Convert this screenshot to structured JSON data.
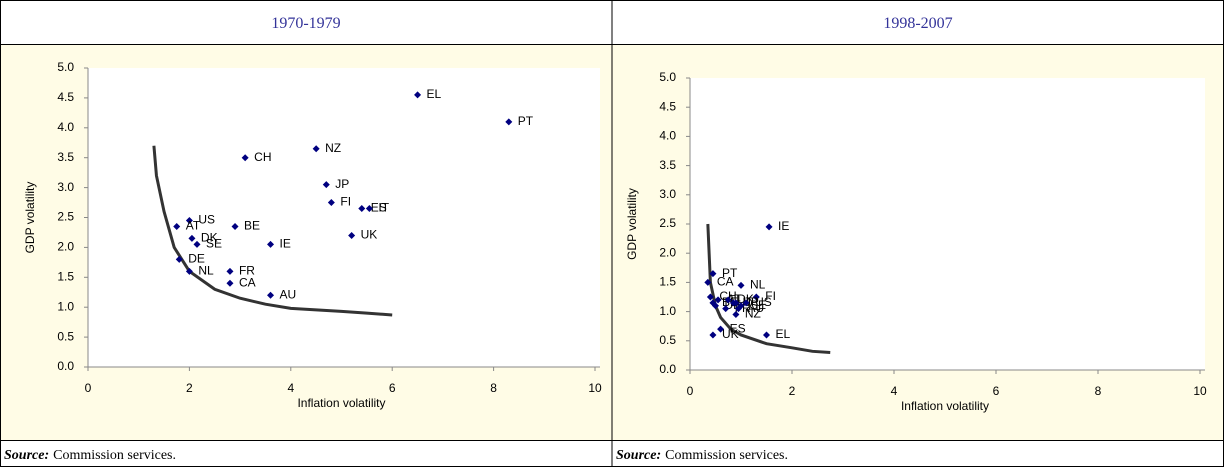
{
  "chart_data": [
    {
      "type": "scatter",
      "title": "1970-1979",
      "xlabel": "Inflation volatility",
      "ylabel": "GDP volatility",
      "xlim": [
        0,
        10
      ],
      "xticks": [
        0,
        2,
        4,
        6,
        8,
        10
      ],
      "ylim": [
        0,
        5
      ],
      "yticks": [
        {
          "value": 0,
          "label": "0.0"
        },
        0.5,
        {
          "value": 1,
          "label": "1.0"
        },
        1.5,
        {
          "value": 2,
          "label": "2.0"
        },
        2.5,
        {
          "value": 3,
          "label": "3.0"
        },
        3.5,
        {
          "value": 4,
          "label": "4.0"
        },
        4.5,
        {
          "value": 5,
          "label": "5.0"
        }
      ],
      "color": "#000080",
      "labels": [
        "EL",
        "PT",
        "CH",
        "NZ",
        "JP",
        "FI",
        "ES",
        "IT",
        "UK",
        "IE",
        "BE",
        "US",
        "AT",
        "DK",
        "SE",
        "DE",
        "NL",
        "FR",
        "CA",
        "AU"
      ],
      "x": [
        6.5,
        8.3,
        3.1,
        4.5,
        4.7,
        4.8,
        5.4,
        5.55,
        5.2,
        3.6,
        2.9,
        2.0,
        1.75,
        2.05,
        2.15,
        1.8,
        2.0,
        2.8,
        2.8,
        3.6
      ],
      "values": [
        4.55,
        4.1,
        3.5,
        3.65,
        3.05,
        2.75,
        2.65,
        2.65,
        2.2,
        2.05,
        2.35,
        2.45,
        2.35,
        2.15,
        2.05,
        1.8,
        1.6,
        1.6,
        1.4,
        1.2
      ],
      "curve": {
        "color": "#333333",
        "x": [
          1.3,
          1.35,
          1.5,
          1.7,
          2.0,
          2.5,
          3.0,
          3.5,
          4.0,
          5.0,
          5.5,
          6.0
        ],
        "values": [
          3.7,
          3.2,
          2.6,
          2.0,
          1.6,
          1.3,
          1.15,
          1.05,
          0.98,
          0.93,
          0.9,
          0.87
        ]
      },
      "source": {
        "label": "Source:",
        "text": "Commission services."
      }
    },
    {
      "type": "scatter",
      "title": "1998-2007",
      "xlabel": "Inflation volatility",
      "ylabel": "GDP volatility",
      "xlim": [
        0,
        10
      ],
      "xticks": [
        0,
        2,
        4,
        6,
        8,
        10
      ],
      "ylim": [
        0,
        5
      ],
      "yticks": [
        {
          "value": 0,
          "label": "0.0"
        },
        0.5,
        {
          "value": 1,
          "label": "1.0"
        },
        1.5,
        {
          "value": 2,
          "label": "2.0"
        },
        2.5,
        {
          "value": 3,
          "label": "3.0"
        },
        3.5,
        {
          "value": 4,
          "label": "4.0"
        },
        4.5,
        {
          "value": 5,
          "label": "5.0"
        }
      ],
      "color": "#000080",
      "labels": [
        "IE",
        "PT",
        "CA",
        "NL",
        "FI",
        "CH",
        "AT",
        "BE",
        "DE",
        "DK",
        "FR",
        "IT",
        "JP",
        "SE",
        "US",
        "AU",
        "NZ",
        "ES",
        "UK",
        "EL"
      ],
      "x": [
        1.55,
        0.45,
        0.35,
        1.0,
        1.3,
        0.4,
        0.55,
        0.45,
        0.5,
        0.75,
        0.7,
        0.85,
        0.9,
        1.0,
        1.1,
        0.95,
        0.9,
        0.6,
        0.45,
        1.5
      ],
      "values": [
        2.45,
        1.65,
        1.5,
        1.45,
        1.25,
        1.25,
        1.2,
        1.15,
        1.1,
        1.2,
        1.05,
        1.15,
        1.15,
        1.1,
        1.15,
        1.05,
        0.95,
        0.7,
        0.6,
        0.6
      ],
      "curve": {
        "color": "#333333",
        "x": [
          0.35,
          0.38,
          0.4,
          0.5,
          0.6,
          0.8,
          1.0,
          1.5,
          2.0,
          2.4,
          2.75
        ],
        "values": [
          2.5,
          1.9,
          1.5,
          1.1,
          0.9,
          0.7,
          0.6,
          0.45,
          0.38,
          0.32,
          0.3
        ]
      },
      "source": {
        "label": "Source:",
        "text": "Commission services."
      }
    }
  ]
}
